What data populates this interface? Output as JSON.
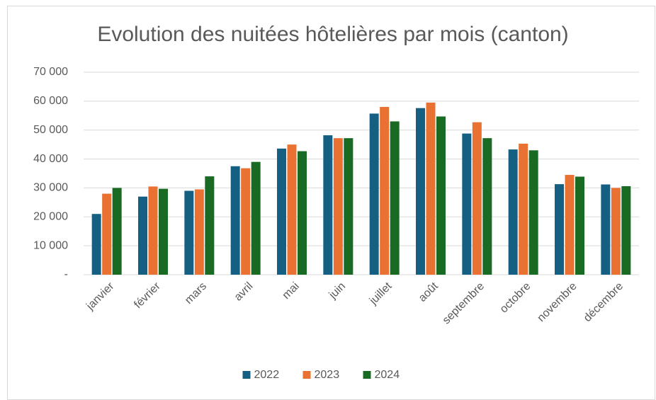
{
  "chart_data": {
    "type": "bar",
    "title": "Evolution des nuitées hôtelières par mois (canton)",
    "categories": [
      "janvier",
      "février",
      "mars",
      "avril",
      "mai",
      "juin",
      "juillet",
      "août",
      "septembre",
      "octobre",
      "novembre",
      "décembre"
    ],
    "series": [
      {
        "name": "2022",
        "color": "#156082",
        "values": [
          21000,
          27000,
          29000,
          37500,
          43600,
          48200,
          55700,
          57600,
          48800,
          43300,
          31300,
          31200
        ]
      },
      {
        "name": "2023",
        "color": "#e97132",
        "values": [
          28000,
          30500,
          29500,
          36800,
          45000,
          47200,
          58000,
          59500,
          52700,
          45300,
          34500,
          30000
        ]
      },
      {
        "name": "2024",
        "color": "#196b24",
        "values": [
          30000,
          29700,
          34000,
          39000,
          42700,
          47200,
          53000,
          54700,
          47200,
          43000,
          33900,
          30600
        ]
      }
    ],
    "ylim": [
      0,
      70000
    ],
    "yticks": [
      {
        "value": 0,
        "label": "-"
      },
      {
        "value": 10000,
        "label": "10 000"
      },
      {
        "value": 20000,
        "label": "20 000"
      },
      {
        "value": 30000,
        "label": "30 000"
      },
      {
        "value": 40000,
        "label": "40 000"
      },
      {
        "value": 50000,
        "label": "50 000"
      },
      {
        "value": 60000,
        "label": "60 000"
      },
      {
        "value": 70000,
        "label": "70 000"
      }
    ],
    "grid": true,
    "legend": "bottom"
  }
}
